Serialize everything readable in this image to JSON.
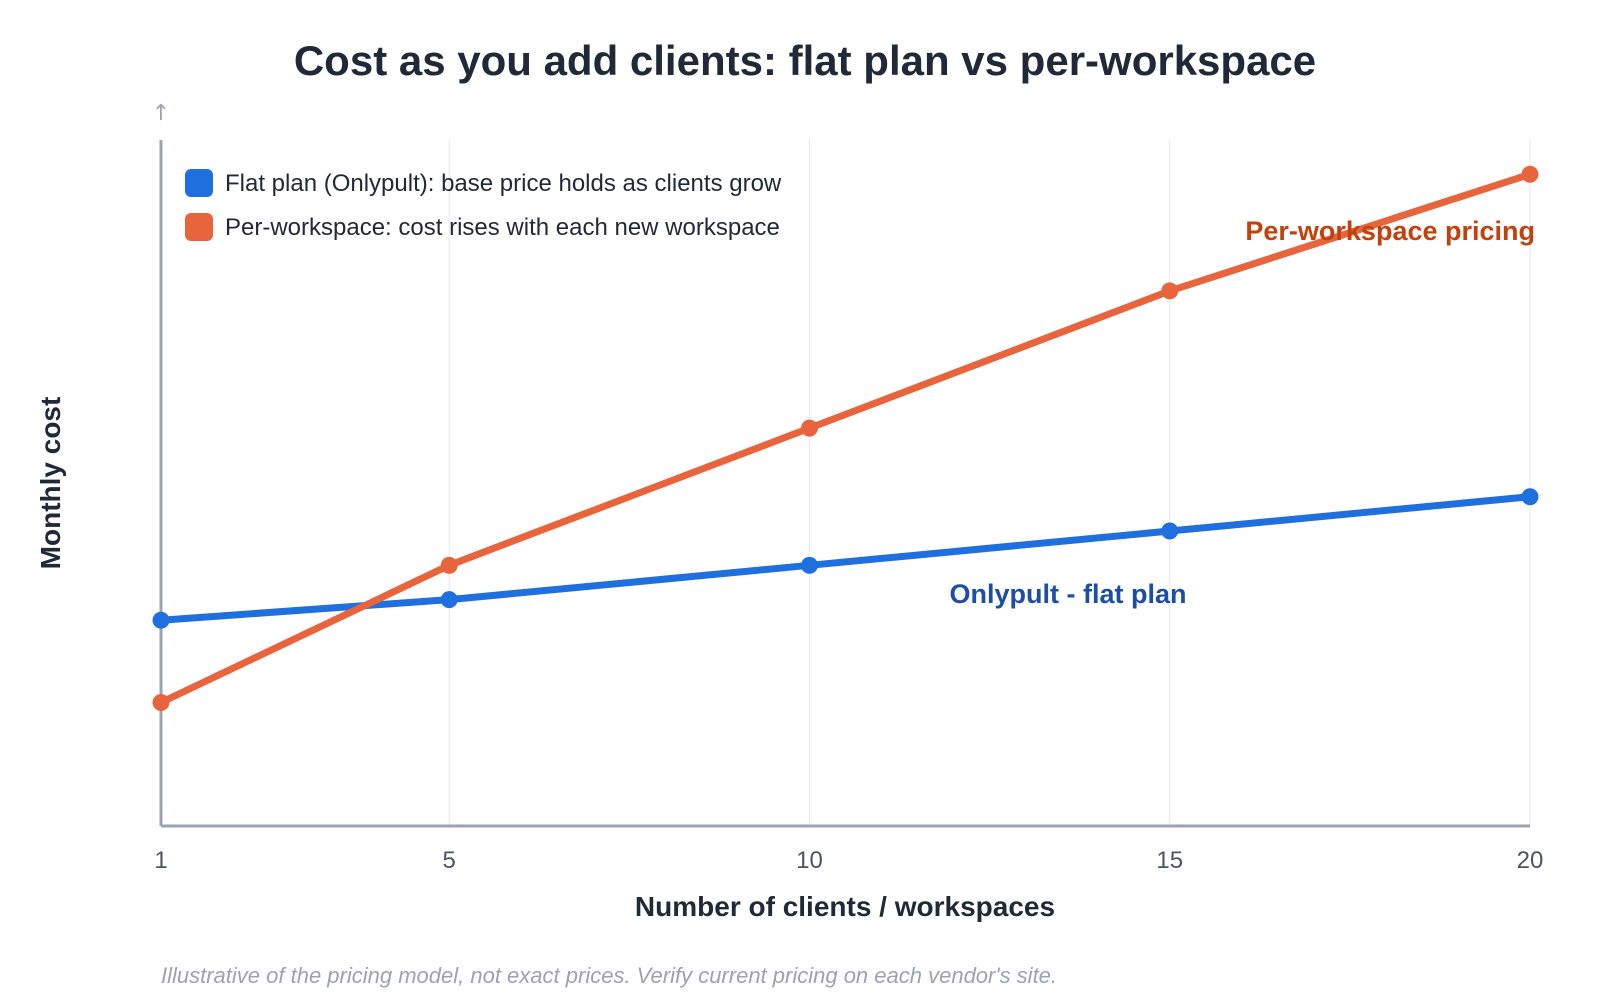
{
  "chart_data": {
    "type": "line",
    "title": "Cost as you add clients: flat plan vs per-workspace",
    "xlabel": "Number of clients / workspaces",
    "ylabel": "Monthly cost",
    "x": [
      1,
      5,
      10,
      15,
      20
    ],
    "x_ticks": [
      "1",
      "5",
      "10",
      "15",
      "20"
    ],
    "xlim": [
      1,
      20
    ],
    "ylim": [
      0,
      100
    ],
    "y_axis_arrow": "↑",
    "grid": "vertical",
    "legend_position": "top-left",
    "series": [
      {
        "name": "Flat plan (Onlypult): base price holds as clients grow",
        "annotation": "Onlypult - flat plan",
        "color": "#1f6fde",
        "annotation_color": "#1d4ea6",
        "values": [
          30,
          33,
          38,
          43,
          48
        ]
      },
      {
        "name": "Per-workspace: cost rises with each new workspace",
        "annotation": "Per-workspace pricing",
        "color": "#e8643c",
        "annotation_color": "#c2410c",
        "values": [
          18,
          38,
          58,
          78,
          95
        ]
      }
    ]
  },
  "footnote": "Illustrative of the pricing model, not exact prices. Verify current pricing on each vendor's site."
}
